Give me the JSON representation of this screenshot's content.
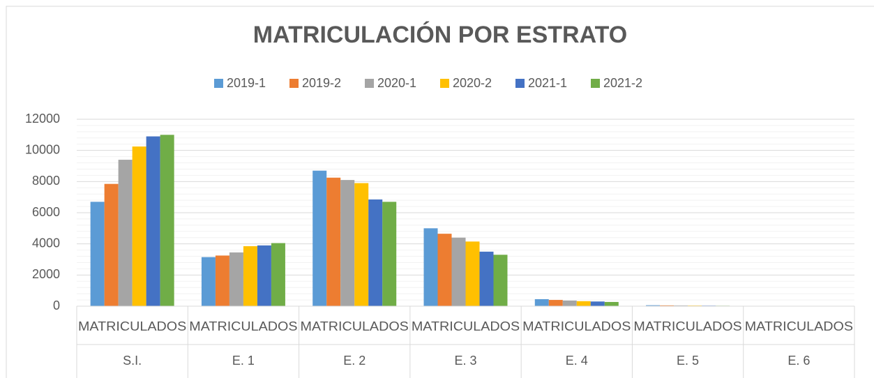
{
  "chart_data": {
    "type": "bar",
    "title": "MATRICULACIÓN POR ESTRATO",
    "categories": [
      "S.I.",
      "E. 1",
      "E. 2",
      "E. 3",
      "E. 4",
      "E. 5",
      "E. 6"
    ],
    "category_sublabels": [
      "MATRICULADOS",
      "MATRICULADOS",
      "MATRICULADOS",
      "MATRICULADOS",
      "MATRICULADOS",
      "MATRICULADOS",
      "MATRICULADOS"
    ],
    "series": [
      {
        "name": "2019-1",
        "color": "#5b9bd5",
        "values": [
          6700,
          3150,
          8700,
          5000,
          450,
          60,
          10
        ]
      },
      {
        "name": "2019-2",
        "color": "#ed7d31",
        "values": [
          7850,
          3250,
          8250,
          4650,
          400,
          50,
          9
        ]
      },
      {
        "name": "2020-1",
        "color": "#a5a5a5",
        "values": [
          9400,
          3450,
          8100,
          4400,
          360,
          45,
          8
        ]
      },
      {
        "name": "2020-2",
        "color": "#ffc000",
        "values": [
          10250,
          3850,
          7900,
          4150,
          320,
          40,
          7
        ]
      },
      {
        "name": "2021-1",
        "color": "#4472c4",
        "values": [
          10900,
          3900,
          6850,
          3500,
          300,
          35,
          6
        ]
      },
      {
        "name": "2021-2",
        "color": "#70ad47",
        "values": [
          11000,
          4050,
          6700,
          3300,
          270,
          30,
          5
        ]
      }
    ],
    "ylim": [
      0,
      12000
    ],
    "yticks": [
      0,
      2000,
      4000,
      6000,
      8000,
      10000,
      12000
    ],
    "minor_yticks": [
      400,
      800,
      1200,
      1600,
      2400,
      2800,
      3200,
      3600,
      4400,
      4800,
      5200,
      5600,
      6400,
      6800,
      7200,
      7600,
      8400,
      8800,
      9200,
      9600,
      10400,
      10800,
      11200,
      11600
    ],
    "grid": true,
    "legend": "top"
  }
}
